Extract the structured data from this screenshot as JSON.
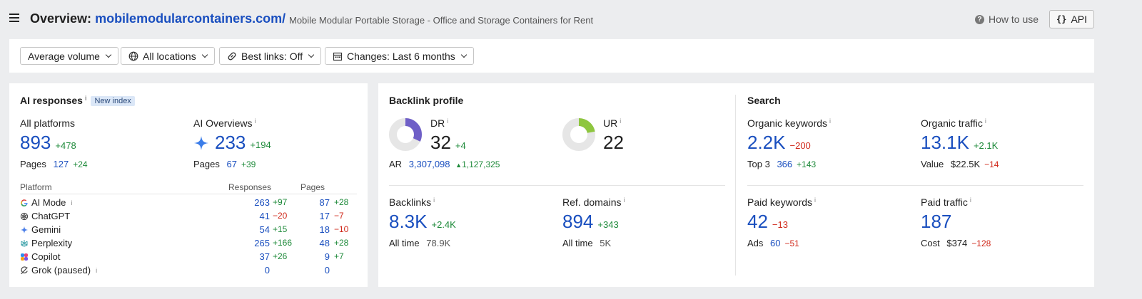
{
  "header": {
    "title_prefix": "Overview:",
    "domain": "mobilemodularcontainers.com/",
    "subtitle": "Mobile Modular Portable Storage - Office and Storage Containers for Rent",
    "how_to_use": "How to use",
    "api": "API"
  },
  "filters": [
    {
      "label": "Average volume",
      "icon": ""
    },
    {
      "label": "All locations",
      "icon": "globe-icon"
    },
    {
      "label": "Best links: Off",
      "icon": "link-icon"
    },
    {
      "label": "Changes: Last 6 months",
      "icon": "calendar-icon"
    }
  ],
  "ai": {
    "title": "AI responses",
    "badge": "New index",
    "all_platforms": {
      "label": "All platforms",
      "value": "893",
      "delta": "+478",
      "pages_label": "Pages",
      "pages": "127",
      "pages_delta": "+24"
    },
    "ai_overviews": {
      "label": "AI Overviews",
      "value": "233",
      "delta": "+194",
      "pages_label": "Pages",
      "pages": "67",
      "pages_delta": "+39"
    },
    "table": {
      "headers": {
        "platform": "Platform",
        "responses": "Responses",
        "pages": "Pages"
      },
      "rows": [
        {
          "name": "AI Mode",
          "icon": "google-icon",
          "info": true,
          "responses": "263",
          "responses_delta": "+97",
          "r_color": "green",
          "pages": "87",
          "pages_delta": "+28",
          "p_color": "green"
        },
        {
          "name": "ChatGPT",
          "icon": "chatgpt-icon",
          "info": false,
          "responses": "41",
          "responses_delta": "−20",
          "r_color": "red",
          "pages": "17",
          "pages_delta": "−7",
          "p_color": "red"
        },
        {
          "name": "Gemini",
          "icon": "gemini-icon",
          "info": false,
          "responses": "54",
          "responses_delta": "+15",
          "r_color": "green",
          "pages": "18",
          "pages_delta": "−10",
          "p_color": "red"
        },
        {
          "name": "Perplexity",
          "icon": "perplexity-icon",
          "info": false,
          "responses": "265",
          "responses_delta": "+166",
          "r_color": "green",
          "pages": "48",
          "pages_delta": "+28",
          "p_color": "green"
        },
        {
          "name": "Copilot",
          "icon": "copilot-icon",
          "info": false,
          "responses": "37",
          "responses_delta": "+26",
          "r_color": "green",
          "pages": "9",
          "pages_delta": "+7",
          "p_color": "green"
        },
        {
          "name": "Grok (paused)",
          "icon": "grok-icon",
          "info": true,
          "responses": "0",
          "responses_delta": "",
          "r_color": "green",
          "pages": "0",
          "pages_delta": "",
          "p_color": "green"
        }
      ]
    }
  },
  "backlink": {
    "title": "Backlink profile",
    "dr": {
      "label": "DR",
      "value": "32",
      "delta": "+4",
      "ring_fraction": 0.32,
      "ring_color": "#6f5fc7"
    },
    "ur": {
      "label": "UR",
      "value": "22",
      "ring_fraction": 0.22,
      "ring_color": "#8ec63f"
    },
    "ar": {
      "label": "AR",
      "value": "3,307,098",
      "delta": "1,127,325"
    },
    "backlinks": {
      "label": "Backlinks",
      "value": "8.3K",
      "delta": "+2.4K",
      "sub_label": "All time",
      "sub_value": "78.9K"
    },
    "ref_domains": {
      "label": "Ref. domains",
      "value": "894",
      "delta": "+343",
      "sub_label": "All time",
      "sub_value": "5K"
    }
  },
  "search": {
    "title": "Search",
    "organic_keywords": {
      "label": "Organic keywords",
      "value": "2.2K",
      "delta": "−200",
      "sub_label": "Top 3",
      "sub_value": "366",
      "sub_delta": "+143"
    },
    "organic_traffic": {
      "label": "Organic traffic",
      "value": "13.1K",
      "delta": "+2.1K",
      "sub_label": "Value",
      "sub_value": "$22.5K",
      "sub_delta": "−14"
    },
    "paid_keywords": {
      "label": "Paid keywords",
      "value": "42",
      "delta": "−13",
      "sub_label": "Ads",
      "sub_value": "60",
      "sub_delta": "−51"
    },
    "paid_traffic": {
      "label": "Paid traffic",
      "value": "187",
      "sub_label": "Cost",
      "sub_value": "$374",
      "sub_delta": "−128"
    }
  }
}
